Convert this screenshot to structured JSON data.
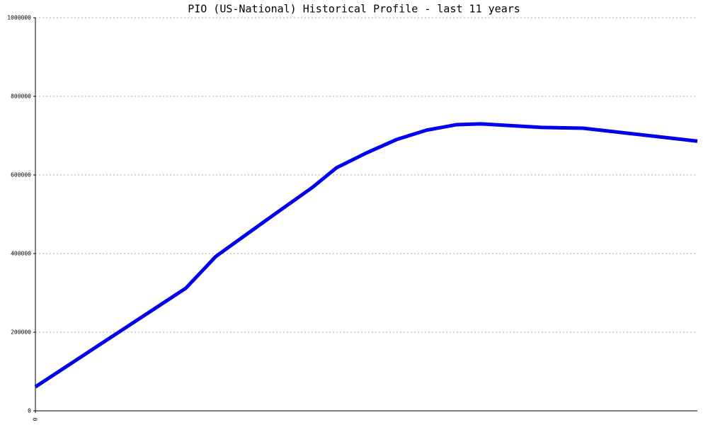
{
  "chart_data": {
    "type": "line",
    "title": "PIO (US-National) Historical Profile - last 11 years",
    "x": [
      0,
      2.5,
      3.0,
      3.8,
      4.6,
      5.0,
      5.5,
      6.0,
      6.5,
      7.0,
      7.4,
      8.4,
      9.1,
      11
    ],
    "series": [
      {
        "color": "#0000ee",
        "values": [
          61000,
          312000,
          393000,
          481000,
          568000,
          618000,
          656000,
          690000,
          714000,
          728000,
          730000,
          721000,
          719000,
          686000
        ]
      }
    ],
    "xlim": [
      0,
      11
    ],
    "xticks": [
      0
    ],
    "ylim": [
      0,
      1000000
    ],
    "yticks": [
      0,
      200000,
      400000,
      600000,
      800000,
      1000000
    ],
    "grid": true
  }
}
